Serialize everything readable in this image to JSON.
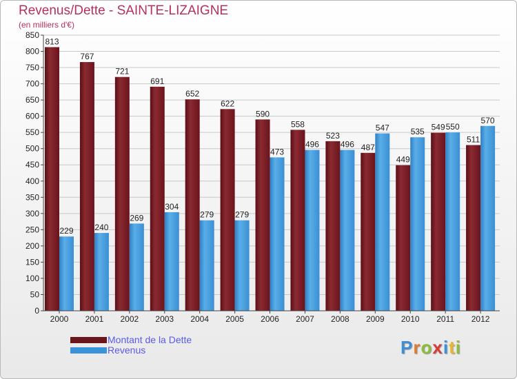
{
  "chart_data": {
    "type": "bar",
    "title": "Revenus/Dette - SAINTE-LIZAIGNE",
    "subtitle": "(en milliers d'€)",
    "categories": [
      "2000",
      "2001",
      "2002",
      "2003",
      "2004",
      "2005",
      "2006",
      "2007",
      "2008",
      "2009",
      "2010",
      "2011",
      "2012"
    ],
    "series": [
      {
        "name": "Montant de la Dette",
        "color": "#7a1a22",
        "values": [
          813,
          767,
          721,
          691,
          652,
          622,
          590,
          558,
          523,
          487,
          449,
          549,
          511
        ]
      },
      {
        "name": "Revenus",
        "color": "#3a93d8",
        "values": [
          229,
          240,
          269,
          304,
          279,
          279,
          473,
          496,
          496,
          547,
          535,
          550,
          570
        ]
      }
    ],
    "ylim": [
      0,
      850
    ],
    "yticks": [
      0,
      50,
      100,
      150,
      200,
      250,
      300,
      350,
      400,
      450,
      500,
      550,
      600,
      650,
      700,
      750,
      800,
      850
    ],
    "grid": true,
    "legend_position": "bottom-left"
  },
  "logo": {
    "letters": [
      {
        "ch": "P",
        "color": "#3e8fd6"
      },
      {
        "ch": "r",
        "color": "#e07b2a"
      },
      {
        "ch": "o",
        "color": "#8bbd3a"
      },
      {
        "ch": "x",
        "color": "#d93a3a"
      },
      {
        "ch": "i",
        "color": "#3e8fd6"
      },
      {
        "ch": "t",
        "color": "#e8b630"
      },
      {
        "ch": "i",
        "color": "#8bbd3a"
      }
    ]
  }
}
